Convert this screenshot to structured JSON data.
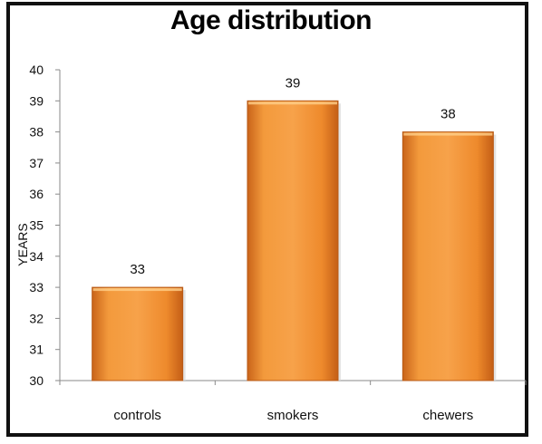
{
  "chart_data": {
    "type": "bar",
    "title": "Age distribution",
    "xlabel": "",
    "ylabel": "YEARS",
    "categories": [
      "controls",
      "smokers",
      "chewers"
    ],
    "values": [
      33,
      39,
      38
    ],
    "data_labels": [
      "33",
      "39",
      "38"
    ],
    "ylim": [
      30,
      40
    ],
    "yticks": [
      "30",
      "31",
      "32",
      "33",
      "34",
      "35",
      "36",
      "37",
      "38",
      "39",
      "40"
    ],
    "grid": false,
    "legend": "none",
    "bar_color": "#f08a24"
  }
}
